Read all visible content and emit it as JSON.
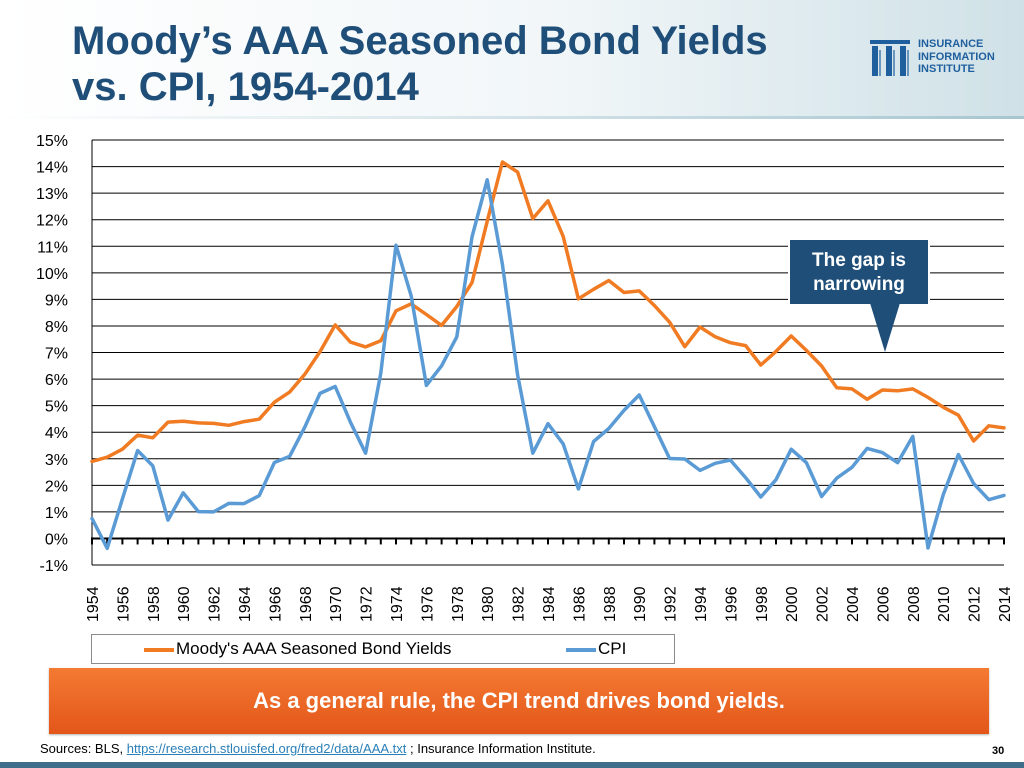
{
  "header": {
    "title_line1": "Moody’s AAA Seasoned Bond Yields",
    "title_line2": "vs. CPI, 1954-2014"
  },
  "logo": {
    "line1": "INSURANCE",
    "line2": "INFORMATION",
    "line3": "INSTITUTE",
    "color": "#1f5f9e"
  },
  "callout": {
    "line1": "The gap is",
    "line2": "narrowing"
  },
  "banner": {
    "text": "As a general rule, the CPI trend drives bond yields."
  },
  "footer": {
    "sources_prefix": "Sources: BLS, ",
    "sources_link": "https://research.stlouisfed.org/fred2/data/AAA.txt",
    "sources_suffix": " ; Insurance Information Institute.",
    "page_number": "30"
  },
  "chart_data": {
    "type": "line",
    "title": "",
    "xlabel": "",
    "ylabel": "",
    "ylim": [
      -1,
      15
    ],
    "xlim": [
      1954,
      2014
    ],
    "grid": true,
    "legend_position": "bottom",
    "y_tick_labels": [
      "15%",
      "14%",
      "13%",
      "12%",
      "11%",
      "10%",
      "9%",
      "8%",
      "7%",
      "6%",
      "5%",
      "4%",
      "3%",
      "2%",
      "1%",
      "0%",
      "-1%"
    ],
    "x_tick_labels": [
      "1954",
      "1956",
      "1958",
      "1960",
      "1962",
      "1964",
      "1966",
      "1968",
      "1970",
      "1972",
      "1974",
      "1976",
      "1978",
      "1980",
      "1982",
      "1984",
      "1986",
      "1988",
      "1990",
      "1992",
      "1994",
      "1996",
      "1998",
      "2000",
      "2002",
      "2004",
      "2006",
      "2008",
      "2010",
      "2012",
      "2014"
    ],
    "x": [
      1954,
      1955,
      1956,
      1957,
      1958,
      1959,
      1960,
      1961,
      1962,
      1963,
      1964,
      1965,
      1966,
      1967,
      1968,
      1969,
      1970,
      1971,
      1972,
      1973,
      1974,
      1975,
      1976,
      1977,
      1978,
      1979,
      1980,
      1981,
      1982,
      1983,
      1984,
      1985,
      1986,
      1987,
      1988,
      1989,
      1990,
      1991,
      1992,
      1993,
      1994,
      1995,
      1996,
      1997,
      1998,
      1999,
      2000,
      2001,
      2002,
      2003,
      2004,
      2005,
      2006,
      2007,
      2008,
      2009,
      2010,
      2011,
      2012,
      2013,
      2014
    ],
    "series": [
      {
        "name": "Moody's AAA Seasoned Bond Yields",
        "color": "#f07b22",
        "values": [
          2.9,
          3.06,
          3.36,
          3.89,
          3.79,
          4.38,
          4.41,
          4.35,
          4.33,
          4.26,
          4.4,
          4.49,
          5.13,
          5.51,
          6.18,
          7.03,
          8.04,
          7.39,
          7.21,
          7.44,
          8.57,
          8.83,
          8.43,
          8.02,
          8.73,
          9.63,
          11.94,
          14.17,
          13.79,
          12.04,
          12.71,
          11.37,
          9.02,
          9.38,
          9.71,
          9.26,
          9.32,
          8.77,
          8.14,
          7.22,
          7.96,
          7.59,
          7.37,
          7.26,
          6.53,
          7.04,
          7.62,
          7.08,
          6.49,
          5.67,
          5.63,
          5.24,
          5.59,
          5.56,
          5.63,
          5.31,
          4.94,
          4.64,
          3.67,
          4.24,
          4.16
        ]
      },
      {
        "name": "CPI",
        "color": "#5b9bd5",
        "values": [
          0.75,
          -0.37,
          1.49,
          3.31,
          2.73,
          0.69,
          1.72,
          1.01,
          1.0,
          1.32,
          1.31,
          1.61,
          2.86,
          3.09,
          4.19,
          5.46,
          5.72,
          4.38,
          3.21,
          6.22,
          11.04,
          9.13,
          5.76,
          6.5,
          7.59,
          11.35,
          13.5,
          10.32,
          6.16,
          3.21,
          4.32,
          3.56,
          1.86,
          3.65,
          4.14,
          4.82,
          5.4,
          4.21,
          3.01,
          2.99,
          2.56,
          2.83,
          2.95,
          2.29,
          1.56,
          2.21,
          3.36,
          2.85,
          1.58,
          2.27,
          2.68,
          3.39,
          3.23,
          2.85,
          3.84,
          -0.36,
          1.64,
          3.16,
          2.07,
          1.46,
          1.62
        ]
      }
    ]
  }
}
